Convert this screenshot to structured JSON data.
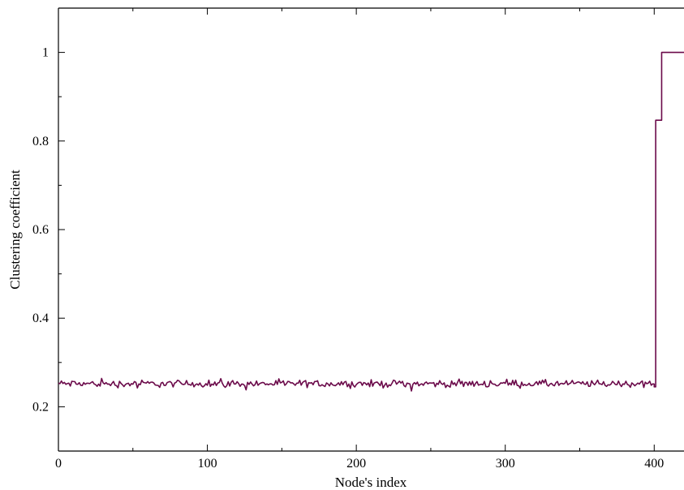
{
  "chart_data": {
    "type": "line",
    "title": "",
    "xlabel": "Node's index",
    "ylabel": "Clustering coefficient",
    "xlim": [
      0,
      420
    ],
    "ylim": [
      0.1,
      1.1
    ],
    "xticks": [
      0,
      100,
      200,
      300,
      400
    ],
    "yticks": [
      0.2,
      0.4,
      0.6,
      0.8,
      1
    ],
    "xtick_labels": [
      "0",
      "100",
      "200",
      "300",
      "400"
    ],
    "ytick_labels": [
      "0.2",
      "0.4",
      "0.6",
      "0.8",
      "1"
    ],
    "grid": false,
    "legend": "none",
    "colors": {
      "line": "#6b0a4a",
      "axis": "#000000"
    },
    "series": [
      {
        "noise_region": {
          "x_start": 0,
          "x_end": 400,
          "mean": 0.252,
          "amplitude": 0.012
        },
        "x": [
          400,
          401,
          401,
          403,
          404,
          405,
          405,
          420
        ],
        "y": [
          0.245,
          0.245,
          0.847,
          0.847,
          0.847,
          0.847,
          1.0,
          1.0
        ]
      }
    ]
  }
}
